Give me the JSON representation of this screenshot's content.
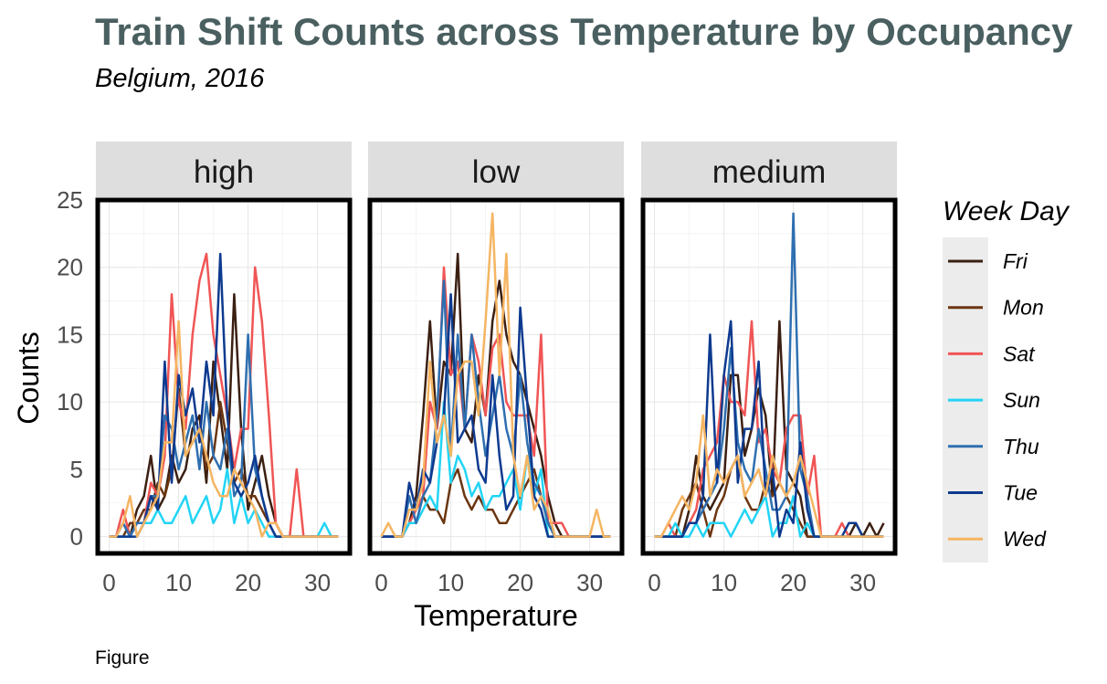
{
  "chart_data": {
    "type": "line",
    "title": "Train Shift Counts across Temperature by Occupancy",
    "subtitle": "Belgium, 2016",
    "xlabel": "Temperature",
    "ylabel": "Counts",
    "caption": "Figure",
    "xlim": [
      -1.65,
      34.65
    ],
    "ylim": [
      -1.25,
      25
    ],
    "x_ticks": [
      0,
      10,
      20,
      30
    ],
    "y_ticks": [
      0,
      5,
      10,
      15,
      20,
      25
    ],
    "grid": true,
    "legend": {
      "title": "Week Day",
      "position": "right"
    },
    "x": [
      0,
      1,
      2,
      3,
      4,
      5,
      6,
      7,
      8,
      9,
      10,
      11,
      12,
      13,
      14,
      15,
      16,
      17,
      18,
      19,
      20,
      21,
      22,
      23,
      24,
      25,
      26,
      27,
      28,
      29,
      30,
      31,
      32,
      33
    ],
    "panels": [
      {
        "label": "high",
        "series": [
          {
            "name": "Fri",
            "color": "#3b1f12",
            "values": [
              0,
              0,
              1,
              0,
              2,
              3,
              6,
              2,
              3,
              6,
              4,
              5,
              8,
              9,
              4,
              13,
              9,
              5,
              18,
              8,
              2,
              4,
              6,
              3,
              1,
              0,
              0,
              0,
              0,
              0,
              0,
              0,
              0,
              0
            ]
          },
          {
            "name": "Mon",
            "color": "#6b3510",
            "values": [
              0,
              0,
              0,
              1,
              1,
              2,
              2,
              4,
              3,
              5,
              11,
              6,
              7,
              8,
              5,
              6,
              10,
              7,
              4,
              5,
              3,
              3,
              2,
              1,
              0,
              0,
              0,
              0,
              0,
              0,
              0,
              0,
              0,
              0
            ]
          },
          {
            "name": "Sat",
            "color": "#f05555",
            "values": [
              0,
              0,
              2,
              0,
              1,
              1,
              4,
              3,
              6,
              18,
              10,
              8,
              15,
              19,
              21,
              15,
              12,
              9,
              5,
              8,
              8,
              20,
              16,
              9,
              1,
              0,
              0,
              5,
              0,
              0,
              0,
              0,
              0,
              0
            ]
          },
          {
            "name": "Sun",
            "color": "#22d4f5",
            "values": [
              0,
              0,
              0,
              0,
              1,
              1,
              1,
              2,
              1,
              1,
              2,
              3,
              1,
              2,
              3,
              1,
              2,
              5,
              1,
              3,
              1,
              2,
              1,
              0,
              0,
              0,
              0,
              0,
              0,
              0,
              0,
              1,
              0,
              0
            ]
          },
          {
            "name": "Thu",
            "color": "#2e6fb0",
            "values": [
              0,
              0,
              1,
              0,
              1,
              1,
              3,
              3,
              9,
              8,
              5,
              7,
              9,
              5,
              10,
              6,
              5,
              8,
              3,
              4,
              15,
              5,
              3,
              1,
              0,
              0,
              0,
              0,
              0,
              0,
              0,
              0,
              0,
              0
            ]
          },
          {
            "name": "Tue",
            "color": "#0d3a8f",
            "values": [
              0,
              0,
              0,
              0,
              0,
              1,
              3,
              2,
              13,
              4,
              12,
              9,
              11,
              7,
              13,
              9,
              21,
              9,
              4,
              3,
              4,
              6,
              3,
              1,
              0,
              0,
              0,
              0,
              0,
              0,
              0,
              0,
              0,
              0
            ]
          },
          {
            "name": "Wed",
            "color": "#f5b562",
            "values": [
              0,
              0,
              1,
              3,
              0,
              1,
              2,
              3,
              7,
              7,
              16,
              6,
              7,
              8,
              6,
              4,
              3,
              3,
              5,
              4,
              3,
              2,
              0,
              1,
              1,
              0,
              0,
              0,
              0,
              0,
              0,
              0,
              0,
              0
            ]
          }
        ]
      },
      {
        "label": "low",
        "series": [
          {
            "name": "Fri",
            "color": "#3b1f12",
            "values": [
              0,
              0,
              0,
              0,
              1,
              3,
              9,
              16,
              8,
              13,
              12,
              21,
              8,
              7,
              12,
              9,
              16,
              19,
              15,
              13,
              12,
              10,
              8,
              6,
              3,
              1,
              0,
              0,
              0,
              0,
              0,
              0,
              0,
              0
            ]
          },
          {
            "name": "Mon",
            "color": "#6b3510",
            "values": [
              0,
              0,
              0,
              0,
              1,
              2,
              3,
              2,
              2,
              1,
              4,
              5,
              3,
              2,
              3,
              2,
              2,
              1,
              1,
              2,
              3,
              4,
              5,
              3,
              1,
              0,
              0,
              0,
              0,
              0,
              0,
              0,
              0,
              0
            ]
          },
          {
            "name": "Sat",
            "color": "#f05555",
            "values": [
              0,
              0,
              0,
              0,
              1,
              2,
              3,
              10,
              8,
              20,
              12,
              13,
              8,
              15,
              13,
              9,
              14,
              15,
              10,
              9,
              9,
              9,
              6,
              15,
              1,
              1,
              1,
              0,
              0,
              0,
              0,
              0,
              0,
              0
            ]
          },
          {
            "name": "Sun",
            "color": "#22d4f5",
            "values": [
              0,
              0,
              0,
              0,
              1,
              1,
              2,
              3,
              2,
              10,
              4,
              6,
              5,
              3,
              4,
              2,
              3,
              3,
              4,
              5,
              2,
              6,
              3,
              5,
              0,
              0,
              0,
              0,
              0,
              0,
              0,
              0,
              0,
              0
            ]
          },
          {
            "name": "Thu",
            "color": "#2e6fb0",
            "values": [
              0,
              0,
              0,
              0,
              3,
              1,
              3,
              4,
              9,
              19,
              6,
              15,
              8,
              15,
              10,
              6,
              9,
              12,
              8,
              6,
              12,
              7,
              4,
              3,
              1,
              0,
              0,
              0,
              0,
              0,
              0,
              0,
              0,
              0
            ]
          },
          {
            "name": "Tue",
            "color": "#0d3a8f",
            "values": [
              0,
              0,
              0,
              0,
              4,
              2,
              5,
              4,
              7,
              9,
              18,
              7,
              8,
              9,
              5,
              4,
              12,
              6,
              2,
              3,
              17,
              10,
              3,
              2,
              0,
              0,
              0,
              0,
              0,
              0,
              0,
              0,
              0,
              0
            ]
          },
          {
            "name": "Wed",
            "color": "#f5b562",
            "values": [
              0,
              1,
              0,
              0,
              2,
              2,
              4,
              13,
              7,
              9,
              6,
              12,
              13,
              13,
              9,
              16,
              24,
              12,
              21,
              6,
              3,
              6,
              2,
              3,
              2,
              0,
              0,
              0,
              0,
              0,
              0,
              2,
              0,
              0
            ]
          }
        ]
      },
      {
        "label": "medium",
        "series": [
          {
            "name": "Fri",
            "color": "#3b1f12",
            "values": [
              0,
              0,
              0,
              0,
              0,
              2,
              6,
              3,
              2,
              3,
              4,
              12,
              12,
              6,
              8,
              11,
              9,
              3,
              16,
              5,
              4,
              3,
              0,
              0,
              0,
              0,
              0,
              0,
              0,
              1,
              0,
              1,
              0,
              1
            ]
          },
          {
            "name": "Mon",
            "color": "#6b3510",
            "values": [
              0,
              0,
              0,
              0,
              2,
              3,
              4,
              2,
              0,
              2,
              3,
              5,
              6,
              3,
              2,
              2,
              4,
              3,
              4,
              3,
              2,
              1,
              0,
              0,
              0,
              0,
              0,
              0,
              0,
              0,
              0,
              0,
              0,
              0
            ]
          },
          {
            "name": "Sat",
            "color": "#f05555",
            "values": [
              0,
              0,
              1,
              0,
              0,
              1,
              2,
              5,
              6,
              7,
              12,
              10,
              10,
              9,
              16,
              7,
              8,
              5,
              4,
              8,
              9,
              9,
              3,
              6,
              0,
              0,
              0,
              1,
              0,
              0,
              0,
              0,
              0,
              0
            ]
          },
          {
            "name": "Sun",
            "color": "#22d4f5",
            "values": [
              0,
              0,
              0,
              1,
              0,
              0,
              1,
              0,
              1,
              1,
              1,
              0,
              1,
              2,
              1,
              2,
              3,
              0,
              1,
              1,
              3,
              0,
              1,
              0,
              0,
              0,
              0,
              0,
              0,
              0,
              0,
              0,
              0,
              0
            ]
          },
          {
            "name": "Thu",
            "color": "#2e6fb0",
            "values": [
              0,
              0,
              0,
              0,
              0,
              1,
              1,
              2,
              3,
              4,
              8,
              14,
              7,
              5,
              4,
              8,
              5,
              2,
              2,
              3,
              24,
              5,
              3,
              0,
              0,
              0,
              0,
              0,
              0,
              0,
              0,
              0,
              0,
              0
            ]
          },
          {
            "name": "Tue",
            "color": "#0d3a8f",
            "values": [
              0,
              0,
              0,
              0,
              0,
              1,
              1,
              3,
              15,
              4,
              12,
              16,
              4,
              8,
              8,
              13,
              3,
              5,
              0,
              2,
              1,
              7,
              2,
              0,
              0,
              0,
              0,
              0,
              1,
              1,
              0,
              0,
              0,
              0
            ]
          },
          {
            "name": "Wed",
            "color": "#f5b562",
            "values": [
              0,
              0,
              1,
              2,
              3,
              2,
              4,
              9,
              3,
              5,
              4,
              5,
              6,
              3,
              4,
              5,
              3,
              6,
              4,
              3,
              4,
              6,
              4,
              2,
              0,
              0,
              0,
              0,
              0,
              0,
              0,
              0,
              0,
              0
            ]
          }
        ]
      }
    ]
  }
}
